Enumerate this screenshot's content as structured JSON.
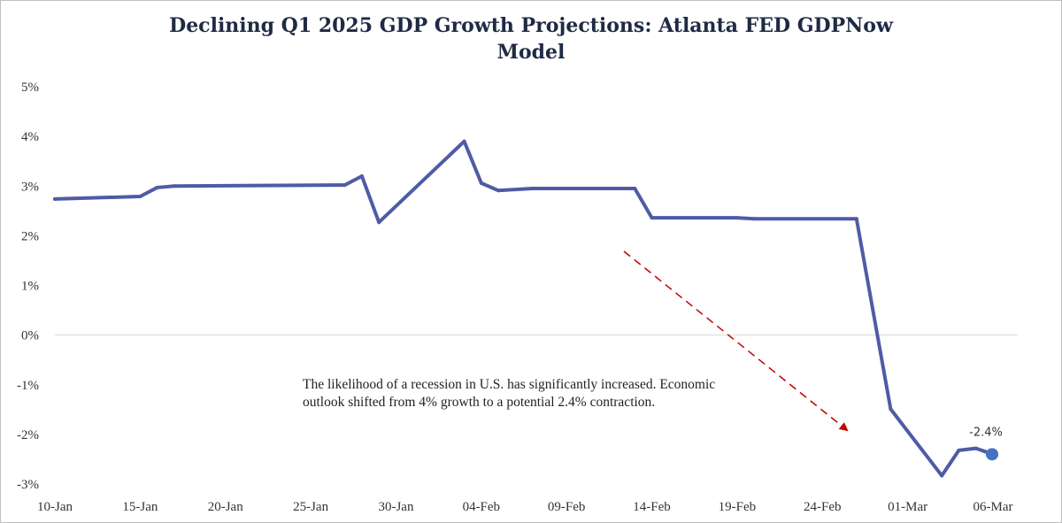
{
  "chart_data": {
    "type": "line",
    "title": "Declining Q1 2025 GDP Growth Projections: Atlanta FED GDPNow Model",
    "xlabel": "",
    "ylabel": "",
    "ylim": [
      -3,
      5
    ],
    "y_ticks": [
      "5%",
      "4%",
      "3%",
      "2%",
      "1%",
      "0%",
      "-1%",
      "-2%",
      "-3%"
    ],
    "y_tick_values": [
      5,
      4,
      3,
      2,
      1,
      0,
      -1,
      -2,
      -3
    ],
    "x_tick_labels": [
      "10-Jan",
      "15-Jan",
      "20-Jan",
      "25-Jan",
      "30-Jan",
      "04-Feb",
      "09-Feb",
      "14-Feb",
      "19-Feb",
      "24-Feb",
      "01-Mar",
      "06-Mar"
    ],
    "x_tick_dates": [
      "2025-01-10",
      "2025-01-15",
      "2025-01-20",
      "2025-01-25",
      "2025-01-30",
      "2025-02-04",
      "2025-02-09",
      "2025-02-14",
      "2025-02-19",
      "2025-02-24",
      "2025-03-01",
      "2025-03-06"
    ],
    "x_range": [
      "2025-01-10",
      "2025-03-06"
    ],
    "grid": "zero-line only",
    "line_color": "#4f5ba6",
    "series": [
      {
        "points": [
          {
            "x": "2025-01-10",
            "y": 2.74
          },
          {
            "x": "2025-01-15",
            "y": 2.79
          },
          {
            "x": "2025-01-16",
            "y": 2.97
          },
          {
            "x": "2025-01-17",
            "y": 3.0
          },
          {
            "x": "2025-01-27",
            "y": 3.02
          },
          {
            "x": "2025-01-28",
            "y": 3.2
          },
          {
            "x": "2025-01-29",
            "y": 2.27
          },
          {
            "x": "2025-02-03",
            "y": 3.9
          },
          {
            "x": "2025-02-04",
            "y": 3.06
          },
          {
            "x": "2025-02-05",
            "y": 2.91
          },
          {
            "x": "2025-02-07",
            "y": 2.95
          },
          {
            "x": "2025-02-13",
            "y": 2.95
          },
          {
            "x": "2025-02-14",
            "y": 2.36
          },
          {
            "x": "2025-02-19",
            "y": 2.36
          },
          {
            "x": "2025-02-20",
            "y": 2.34
          },
          {
            "x": "2025-02-26",
            "y": 2.34
          },
          {
            "x": "2025-02-28",
            "y": -1.49
          },
          {
            "x": "2025-03-03",
            "y": -2.83
          },
          {
            "x": "2025-03-04",
            "y": -2.32
          },
          {
            "x": "2025-03-05",
            "y": -2.28
          },
          {
            "x": "2025-03-06",
            "y": -2.4
          }
        ]
      }
    ],
    "last_point_label": "-2.4%",
    "annotation": "The likelihood of a recession in U.S. has significantly increased. Economic outlook shifted from 4% growth to a potential 2.4% contraction.",
    "arrow_color": "#c00000"
  }
}
